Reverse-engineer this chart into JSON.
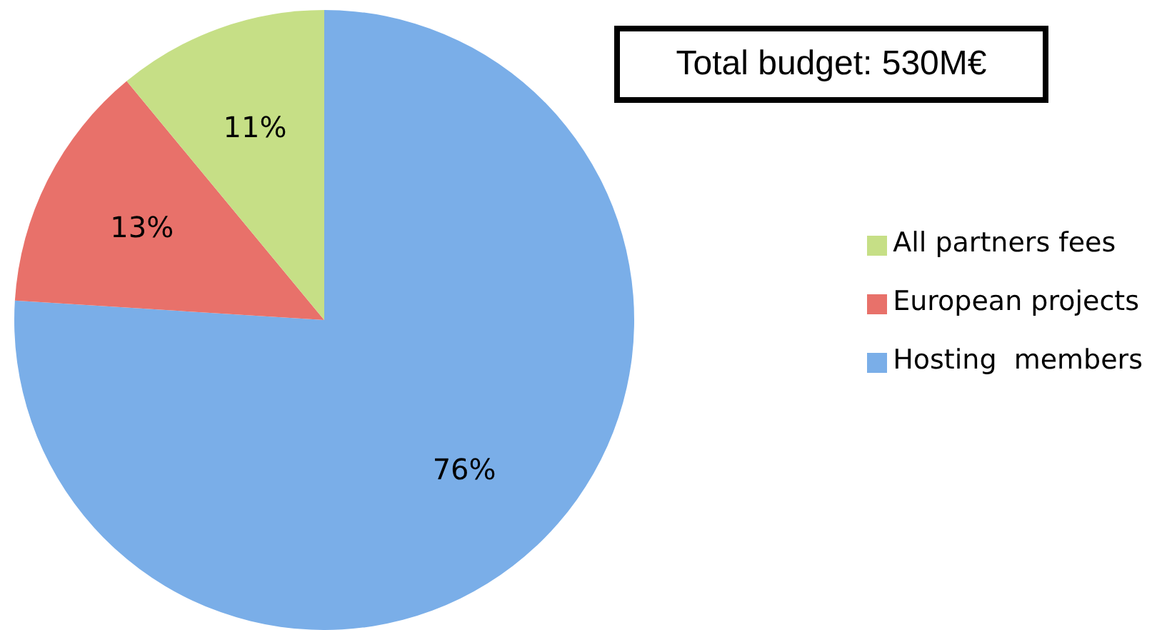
{
  "chart_data": {
    "type": "pie",
    "categories": [
      "Hosting  members",
      "European projects",
      "All partners fees"
    ],
    "values": [
      76,
      13,
      11
    ],
    "colors": [
      "#7aaee8",
      "#e8716a",
      "#c6df86"
    ],
    "value_labels": [
      "76%",
      "13%",
      "11%"
    ],
    "legend": "right",
    "annotations": [
      "Total budget: 530M€"
    ]
  }
}
